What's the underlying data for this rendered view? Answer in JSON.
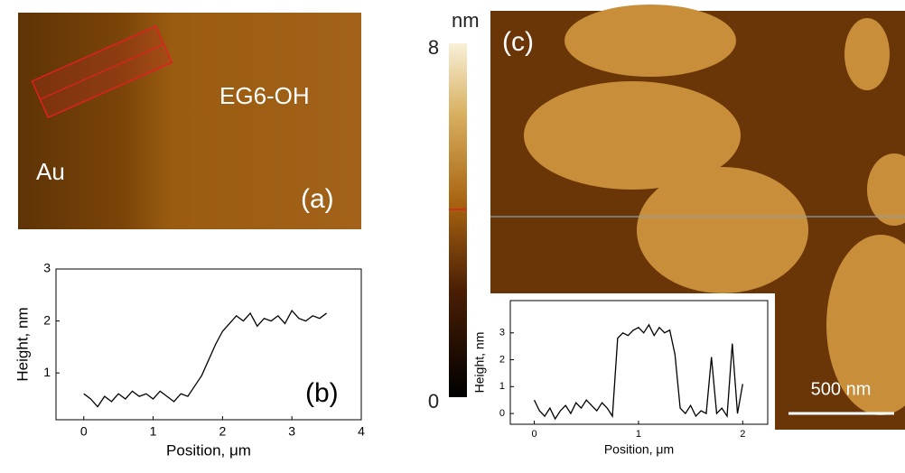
{
  "images": {
    "a_label": "(a)",
    "a_left": "Au",
    "a_right": "EG6-OH",
    "c_label": "(c)",
    "colorbar_unit": "nm",
    "colorbar_max": "8",
    "colorbar_min": "0",
    "scale_bar": "500 nm"
  },
  "chart_data": [
    {
      "type": "line",
      "panel": "(b)",
      "x_label": "Position, μm",
      "y_label": "Height, nm",
      "x": [
        0,
        0.1,
        0.2,
        0.3,
        0.4,
        0.5,
        0.6,
        0.7,
        0.8,
        0.9,
        1.0,
        1.1,
        1.2,
        1.3,
        1.4,
        1.5,
        1.6,
        1.7,
        1.8,
        1.9,
        2.0,
        2.1,
        2.2,
        2.3,
        2.4,
        2.5,
        2.6,
        2.7,
        2.8,
        2.9,
        3.0,
        3.1,
        3.2,
        3.3,
        3.4,
        3.5
      ],
      "series": [
        {
          "color": "#000000",
          "values": [
            0.6,
            0.5,
            0.35,
            0.55,
            0.45,
            0.6,
            0.5,
            0.65,
            0.55,
            0.6,
            0.5,
            0.65,
            0.55,
            0.45,
            0.6,
            0.55,
            0.75,
            0.95,
            1.25,
            1.55,
            1.8,
            1.95,
            2.1,
            2.0,
            2.15,
            1.9,
            2.05,
            2.0,
            2.1,
            1.95,
            2.2,
            2.05,
            2.0,
            2.1,
            2.05,
            2.15
          ]
        }
      ],
      "xlim": [
        -0.4,
        4
      ],
      "ylim": [
        0.1,
        3
      ],
      "xticks": [
        0,
        1,
        2,
        3,
        4
      ],
      "yticks": [
        1,
        2,
        3
      ]
    },
    {
      "type": "line",
      "x_label": "Position, μm",
      "y_label": "Height, nm",
      "x": [
        0,
        0.05,
        0.1,
        0.15,
        0.2,
        0.25,
        0.3,
        0.35,
        0.4,
        0.45,
        0.5,
        0.55,
        0.6,
        0.65,
        0.7,
        0.75,
        0.8,
        0.85,
        0.9,
        0.95,
        1.0,
        1.05,
        1.1,
        1.15,
        1.2,
        1.25,
        1.3,
        1.35,
        1.4,
        1.45,
        1.5,
        1.55,
        1.6,
        1.65,
        1.7,
        1.75,
        1.8,
        1.85,
        1.9,
        1.95,
        2.0
      ],
      "series": [
        {
          "color": "#000000",
          "values": [
            0.5,
            0.1,
            -0.1,
            0.2,
            -0.2,
            0.1,
            0.3,
            0.0,
            0.4,
            0.2,
            0.5,
            0.3,
            0.1,
            0.4,
            0.2,
            -0.1,
            2.8,
            3.0,
            2.9,
            3.1,
            3.2,
            3.0,
            3.3,
            2.9,
            3.2,
            3.0,
            3.1,
            2.2,
            0.2,
            0.0,
            0.3,
            -0.1,
            0.1,
            0.0,
            2.1,
            0.0,
            0.2,
            -0.1,
            2.6,
            0.0,
            1.1
          ]
        }
      ],
      "xlim": [
        -0.23,
        2.24
      ],
      "ylim": [
        -0.4,
        4.2
      ],
      "xticks": [
        0,
        1,
        2
      ],
      "yticks": [
        0,
        1,
        2,
        3
      ]
    }
  ]
}
